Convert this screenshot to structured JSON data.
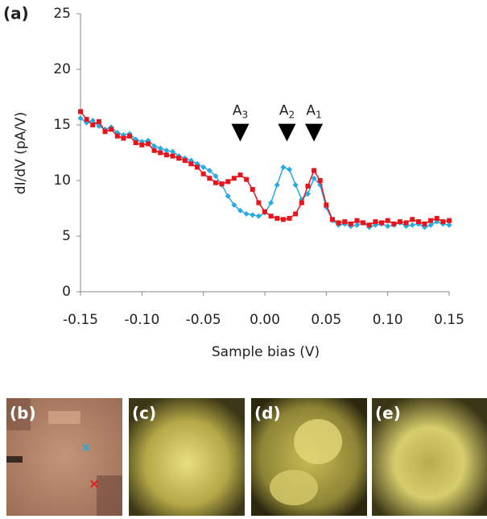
{
  "chart_data": {
    "type": "line",
    "panel_label": "(a)",
    "x_label": "Sample bias (V)",
    "y_label": "dI/dV (pA/V)",
    "x": [
      -0.15,
      -0.145,
      -0.14,
      -0.135,
      -0.13,
      -0.125,
      -0.12,
      -0.115,
      -0.11,
      -0.105,
      -0.1,
      -0.095,
      -0.09,
      -0.085,
      -0.08,
      -0.075,
      -0.07,
      -0.065,
      -0.06,
      -0.055,
      -0.05,
      -0.045,
      -0.04,
      -0.035,
      -0.03,
      -0.025,
      -0.02,
      -0.015,
      -0.01,
      -0.005,
      0,
      0.005,
      0.01,
      0.015,
      0.02,
      0.025,
      0.03,
      0.035,
      0.04,
      0.045,
      0.05,
      0.055,
      0.06,
      0.065,
      0.07,
      0.075,
      0.08,
      0.085,
      0.09,
      0.095,
      0.1,
      0.105,
      0.11,
      0.115,
      0.12,
      0.125,
      0.13,
      0.135,
      0.14,
      0.145,
      0.15
    ],
    "series": [
      {
        "color": "#27a9e1",
        "marker": "diamond",
        "values": [
          15.6,
          15.2,
          15.4,
          14.9,
          14.6,
          14.8,
          14.3,
          14.1,
          14.2,
          13.7,
          13.5,
          13.6,
          13.1,
          12.9,
          12.7,
          12.6,
          12.2,
          12.0,
          11.8,
          11.5,
          11.2,
          10.9,
          10.4,
          9.6,
          8.6,
          7.8,
          7.3,
          7.0,
          6.9,
          6.8,
          7.1,
          8.0,
          9.6,
          11.2,
          11.0,
          9.6,
          8.3,
          8.8,
          10.2,
          9.6,
          7.6,
          6.4,
          6.0,
          6.1,
          5.9,
          6.0,
          6.2,
          5.8,
          6.0,
          6.1,
          5.9,
          6.0,
          6.2,
          5.9,
          6.0,
          6.1,
          5.8,
          6.0,
          6.3,
          6.1,
          6.0
        ]
      },
      {
        "color": "#e8141c",
        "marker": "square",
        "values": [
          16.2,
          15.5,
          15.0,
          15.3,
          14.4,
          14.6,
          14.0,
          13.8,
          14.0,
          13.4,
          13.2,
          13.3,
          12.7,
          12.5,
          12.3,
          12.2,
          12.0,
          11.8,
          11.5,
          11.2,
          10.6,
          10.2,
          9.8,
          9.7,
          9.9,
          10.2,
          10.5,
          10.1,
          9.2,
          8.0,
          7.2,
          6.8,
          6.6,
          6.5,
          6.6,
          7.0,
          8.0,
          9.5,
          10.9,
          10.0,
          7.8,
          6.5,
          6.2,
          6.3,
          6.1,
          6.4,
          6.2,
          6.0,
          6.3,
          6.2,
          6.4,
          6.1,
          6.3,
          6.2,
          6.5,
          6.3,
          6.1,
          6.4,
          6.6,
          6.3,
          6.4
        ]
      }
    ],
    "xlim": [
      -0.15,
      0.15
    ],
    "ylim": [
      0,
      25
    ],
    "xticks": [
      -0.15,
      {
        "value": -0.1,
        "label": "-0.10"
      },
      -0.05,
      {
        "value": 0,
        "label": "0.00"
      },
      0.05,
      {
        "value": 0.1,
        "label": "0.10"
      },
      0.15
    ],
    "yticks": [
      0,
      5,
      10,
      15,
      20,
      25
    ],
    "annotations": [
      {
        "label": "A",
        "subscript": "3",
        "x": -0.02,
        "y": 15.1
      },
      {
        "label": "A",
        "subscript": "2",
        "x": 0.018,
        "y": 15.1
      },
      {
        "label": "A",
        "subscript": "1",
        "x": 0.04,
        "y": 15.1
      }
    ]
  },
  "panels": [
    {
      "label": "(b)"
    },
    {
      "label": "(c)"
    },
    {
      "label": "(d)"
    },
    {
      "label": "(e)"
    }
  ]
}
